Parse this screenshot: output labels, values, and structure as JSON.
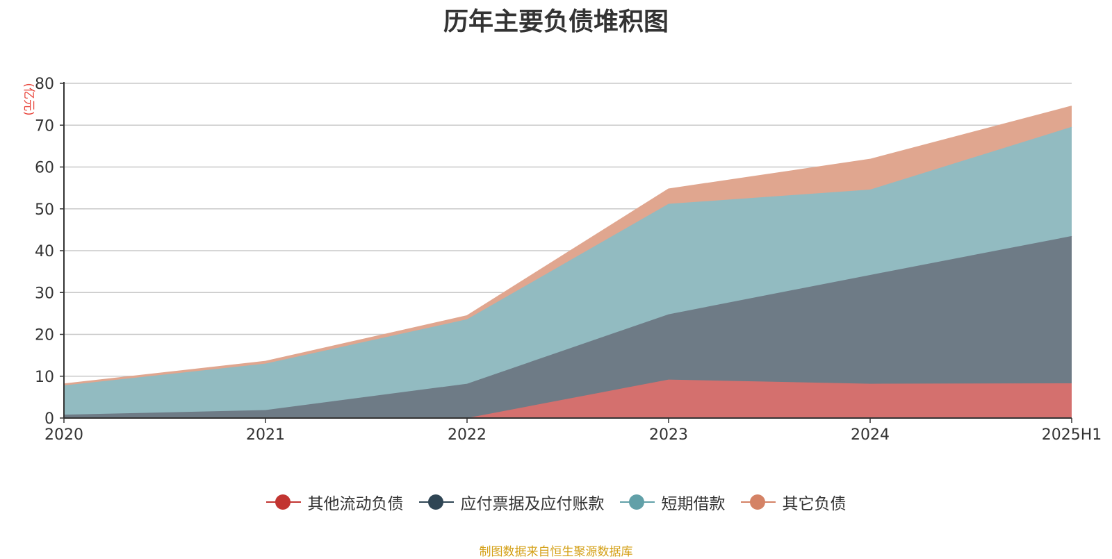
{
  "chart_data": {
    "type": "area",
    "stacked": true,
    "title": "历年主要负债堆积图",
    "unit_label": "(亿元)",
    "source_note": "制图数据来自恒生聚源数据库",
    "categories": [
      "2020",
      "2021",
      "2022",
      "2023",
      "2024",
      "2025H1"
    ],
    "ylim": [
      0,
      80
    ],
    "yticks": [
      0,
      10,
      20,
      30,
      40,
      50,
      60,
      70,
      80
    ],
    "grid": true,
    "legend_position": "bottom-center",
    "series": [
      {
        "name": "其他流动负债",
        "values": [
          0,
          0,
          0,
          9.2,
          8.2,
          8.3
        ],
        "color": "#c23531",
        "fill": "#d4706e"
      },
      {
        "name": "应付票据及应付账款",
        "values": [
          0.8,
          1.9,
          8.2,
          15.6,
          26.0,
          35.2
        ],
        "color": "#2f4554",
        "fill": "#6e7b86"
      },
      {
        "name": "短期借款",
        "values": [
          7.0,
          11.1,
          15.4,
          26.4,
          20.4,
          26.1
        ],
        "color": "#61a0a8",
        "fill": "#92bbc1"
      },
      {
        "name": "其它负债",
        "values": [
          0.3,
          0.5,
          0.8,
          3.5,
          7.2,
          4.9
        ],
        "color": "#d48265",
        "fill": "#e0a68f"
      }
    ]
  }
}
